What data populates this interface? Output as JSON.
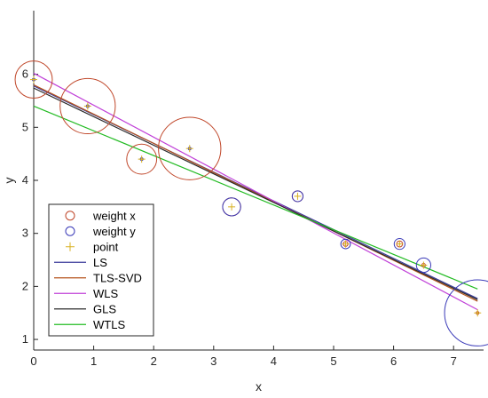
{
  "chart_data": {
    "type": "scatter",
    "title": "",
    "xlabel": "x",
    "ylabel": "y",
    "xlim": [
      0,
      7.5
    ],
    "ylim": [
      0.8,
      7.2
    ],
    "xticks": [
      0,
      1,
      2,
      3,
      4,
      5,
      6,
      7
    ],
    "yticks": [
      1,
      2,
      3,
      4,
      5,
      6
    ],
    "grid": false,
    "legend_position": "bottom-left",
    "points": {
      "x": [
        0,
        0.9,
        1.8,
        2.6,
        3.3,
        4.4,
        5.2,
        6.1,
        6.5,
        7.4
      ],
      "y": [
        5.9,
        5.4,
        4.4,
        4.6,
        3.5,
        3.7,
        2.8,
        2.8,
        2.4,
        1.5
      ]
    },
    "weight_x_radius": [
      0.31,
      0.46,
      0.25,
      0.52,
      0.15,
      0.09,
      0.04,
      0.05,
      0.03,
      0.01
    ],
    "weight_y_radius": [
      0.01,
      0.01,
      0.01,
      0.01,
      0.15,
      0.09,
      0.08,
      0.09,
      0.12,
      0.55
    ],
    "lines": [
      {
        "name": "LS",
        "color": "#3a3a9a",
        "x": [
          0,
          7.4
        ],
        "y": [
          5.78,
          1.77
        ]
      },
      {
        "name": "TLS-SVD",
        "color": "#b5531b",
        "x": [
          0,
          7.4
        ],
        "y": [
          5.8,
          1.72
        ]
      },
      {
        "name": "WLS",
        "color": "#c040d8",
        "x": [
          0,
          7.4
        ],
        "y": [
          6.02,
          1.56
        ]
      },
      {
        "name": "GLS",
        "color": "#2a2a2a",
        "x": [
          0,
          7.4
        ],
        "y": [
          5.74,
          1.75
        ]
      },
      {
        "name": "WTLS",
        "color": "#22bb22",
        "x": [
          0,
          7.4
        ],
        "y": [
          5.4,
          1.95
        ]
      }
    ],
    "legend": [
      {
        "label": "weight x",
        "kind": "circle",
        "color": "#c0472a"
      },
      {
        "label": "weight y",
        "kind": "circle",
        "color": "#3a3ab8"
      },
      {
        "label": "point",
        "kind": "plus",
        "color": "#d8b020"
      },
      {
        "label": "LS",
        "kind": "line",
        "color": "#3a3a9a"
      },
      {
        "label": "TLS-SVD",
        "kind": "line",
        "color": "#b5531b"
      },
      {
        "label": "WLS",
        "kind": "line",
        "color": "#c040d8"
      },
      {
        "label": "GLS",
        "kind": "line",
        "color": "#2a2a2a"
      },
      {
        "label": "WTLS",
        "kind": "line",
        "color": "#22bb22"
      }
    ],
    "colors": {
      "weight_x": "#c0472a",
      "weight_y": "#3a3ab8",
      "point": "#d8b020",
      "axis": "#262626"
    }
  }
}
